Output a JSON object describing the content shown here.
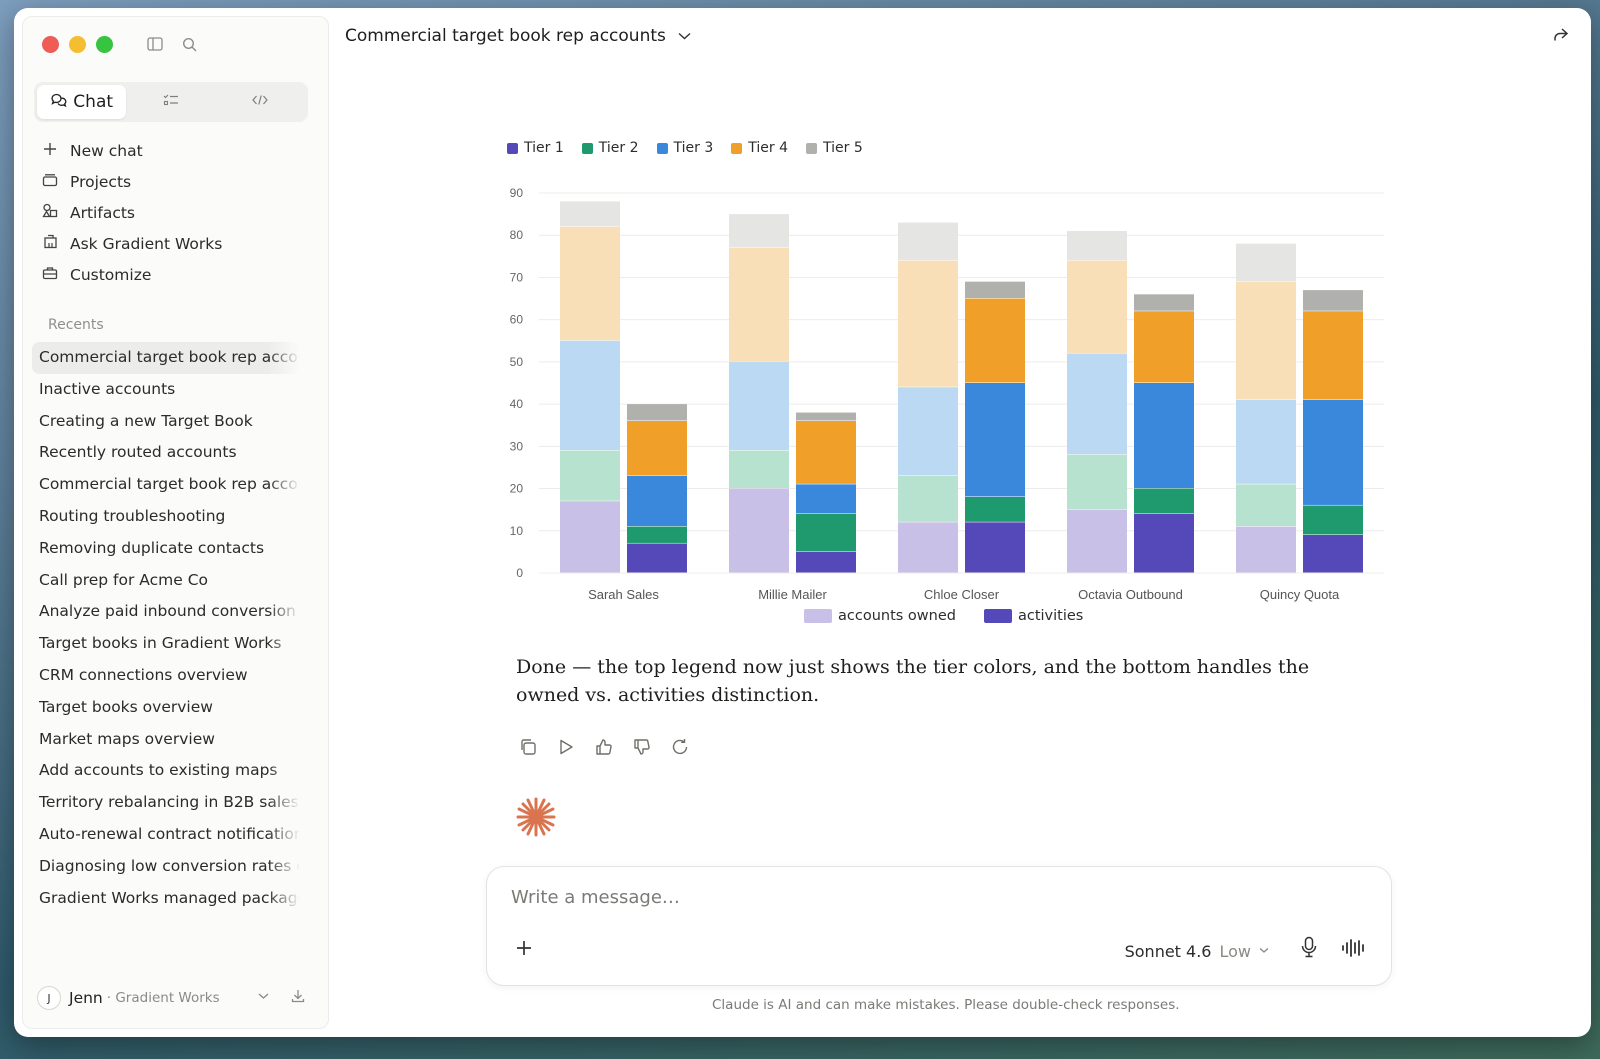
{
  "sidebar": {
    "mode_tabs": [
      {
        "label": "Chat",
        "icon": "chat-bubbles-icon"
      },
      {
        "label": "",
        "icon": "tasks-icon"
      },
      {
        "label": "",
        "icon": "code-icon"
      }
    ],
    "nav": [
      {
        "label": "New chat",
        "icon": "plus-icon"
      },
      {
        "label": "Projects",
        "icon": "folder-icon"
      },
      {
        "label": "Artifacts",
        "icon": "artifacts-icon"
      },
      {
        "label": "Ask Gradient Works",
        "icon": "building-icon"
      },
      {
        "label": "Customize",
        "icon": "briefcase-icon"
      }
    ],
    "recents_label": "Recents",
    "recents": [
      "Commercial target book rep accounts",
      "Inactive accounts",
      "Creating a new Target Book",
      "Recently routed accounts",
      "Commercial target book rep accounts",
      "Routing troubleshooting",
      "Removing duplicate contacts",
      "Call prep for Acme Co",
      "Analyze paid inbound conversion",
      "Target books in Gradient Works",
      "CRM connections overview",
      "Target books overview",
      "Market maps overview",
      "Add accounts to existing maps",
      "Territory rebalancing in B2B sales",
      "Auto-renewal contract notifications",
      "Diagnosing low conversion rates on",
      "Gradient Works managed package"
    ],
    "user": {
      "initial": "J",
      "name": "Jenn",
      "org": "· Gradient Works"
    }
  },
  "header": {
    "title": "Commercial target book rep accounts"
  },
  "chart_data": {
    "type": "bar",
    "stacked": true,
    "grouped": true,
    "categories": [
      "Sarah Sales",
      "Millie Mailer",
      "Chloe Closer",
      "Octavia Outbound",
      "Quincy Quota"
    ],
    "groups": [
      "accounts owned",
      "activities"
    ],
    "tiers": [
      "Tier 1",
      "Tier 2",
      "Tier 3",
      "Tier 4",
      "Tier 5"
    ],
    "tier_colors": [
      "#5548b8",
      "#1f9a6e",
      "#3a88dc",
      "#f0a028",
      "#b0b0ac"
    ],
    "tier_colors_light": [
      "#c8c0e6",
      "#b7e2cf",
      "#bcd9f3",
      "#f9dfb8",
      "#e5e5e3"
    ],
    "series": [
      {
        "name": "accounts owned",
        "values": [
          [
            17,
            12,
            26,
            27,
            6
          ],
          [
            20,
            9,
            21,
            27,
            8
          ],
          [
            12,
            11,
            21,
            30,
            9
          ],
          [
            15,
            13,
            24,
            22,
            7
          ],
          [
            11,
            10,
            20,
            28,
            9
          ]
        ]
      },
      {
        "name": "activities",
        "values": [
          [
            7,
            4,
            12,
            13,
            4
          ],
          [
            5,
            9,
            7,
            15,
            2
          ],
          [
            12,
            6,
            27,
            20,
            4
          ],
          [
            14,
            6,
            25,
            17,
            4
          ],
          [
            9,
            7,
            25,
            21,
            5
          ]
        ]
      }
    ],
    "ylim": [
      0,
      90
    ],
    "yticks": [
      0,
      10,
      20,
      30,
      40,
      50,
      60,
      70,
      80,
      90
    ],
    "legend_top_placement": "top-left",
    "legend_bottom": [
      {
        "label": "accounts owned",
        "color": "#c8c0e6"
      },
      {
        "label": "activities",
        "color": "#5548b8"
      }
    ],
    "grid": true
  },
  "response": {
    "text": "Done — the top legend now just shows the tier colors, and the bottom handles the owned vs. activities distinction."
  },
  "actions": [
    "copy-icon",
    "play-icon",
    "thumbs-up-icon",
    "thumbs-down-icon",
    "retry-icon"
  ],
  "composer": {
    "placeholder": "Write a message…",
    "model": "Sonnet 4.6",
    "effort": "Low"
  },
  "disclaimer": "Claude is AI and can make mistakes. Please double-check responses."
}
